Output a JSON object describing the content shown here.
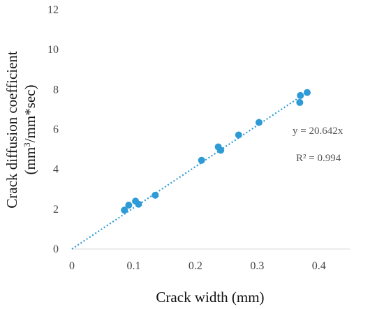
{
  "chart_data": {
    "type": "scatter",
    "title": "",
    "xlabel": "Crack width (mm)",
    "ylabel_line1": "Crack diffusion coefficient",
    "ylabel_line2_pre": "(mm",
    "ylabel_line2_sup": "3",
    "ylabel_line2_post": "/mm*sec)",
    "xlim": [
      0,
      0.45
    ],
    "ylim": [
      0,
      12
    ],
    "x_ticks": [
      0,
      0.1,
      0.2,
      0.3,
      0.4
    ],
    "x_tick_labels": [
      "0",
      "0.1",
      "0.2",
      "0.3",
      "0.4"
    ],
    "y_ticks": [
      0,
      2,
      4,
      6,
      8,
      10,
      12
    ],
    "y_tick_labels": [
      "0",
      "2",
      "4",
      "6",
      "8",
      "10",
      "12"
    ],
    "grid": false,
    "legend": "none",
    "marker_color": "#2E9BD6",
    "trendline_color": "#2E9BD6",
    "series": [
      {
        "x": [
          0.085,
          0.092,
          0.103,
          0.108,
          0.135,
          0.21,
          0.237,
          0.241,
          0.27,
          0.303,
          0.369,
          0.37,
          0.381
        ],
        "y": [
          1.95,
          2.2,
          2.4,
          2.25,
          2.7,
          4.45,
          5.12,
          4.95,
          5.72,
          6.35,
          7.35,
          7.7,
          7.85
        ]
      }
    ],
    "trendline": {
      "type": "linear",
      "slope": 20.642,
      "intercept": 0,
      "x_range": [
        0,
        0.385
      ],
      "style": "dotted"
    },
    "annotations": {
      "equation": "y = 20.642x",
      "r2": "R² = 0.994"
    }
  }
}
